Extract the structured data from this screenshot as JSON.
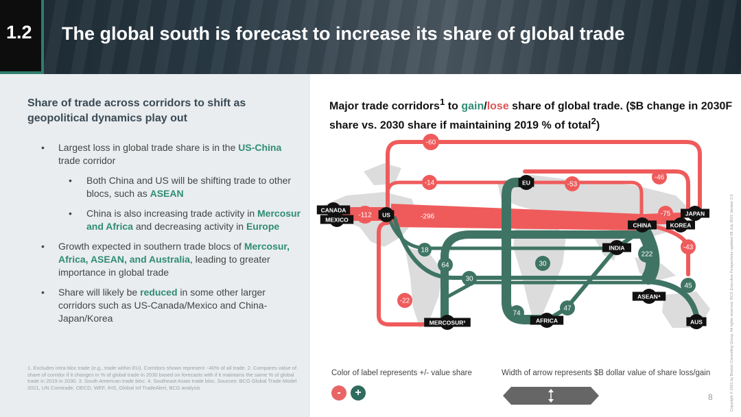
{
  "header": {
    "section_number": "1.2",
    "title": "The global south is forecast to increase its share of global trade"
  },
  "left": {
    "heading": "Share of trade across corridors to shift as geopolitical dynamics play out",
    "bullets": [
      {
        "level": 1,
        "parts": [
          {
            "t": "Largest loss in global trade share is in the "
          },
          {
            "t": "US-China",
            "hl": true
          },
          {
            "t": " trade corridor"
          }
        ]
      },
      {
        "level": 2,
        "parts": [
          {
            "t": "Both China and US will be shifting trade to other blocs, such as "
          },
          {
            "t": "ASEAN",
            "hl": true
          }
        ]
      },
      {
        "level": 2,
        "parts": [
          {
            "t": "China is also increasing trade activity in "
          },
          {
            "t": "Mercosur and Africa",
            "hl": true
          },
          {
            "t": " and decreasing activity in "
          },
          {
            "t": "Europe",
            "hl": true
          }
        ]
      },
      {
        "level": 1,
        "parts": [
          {
            "t": "Growth expected in southern trade blocs of "
          },
          {
            "t": "Mercosur, Africa, ASEAN, and Australia",
            "hl": true
          },
          {
            "t": ", leading to greater importance in global trade"
          }
        ]
      },
      {
        "level": 1,
        "parts": [
          {
            "t": "Share will likely be "
          },
          {
            "t": "reduced",
            "hl": true
          },
          {
            "t": " in some other larger corridors such as US-Canada/Mexico and China-Japan/Korea"
          }
        ]
      }
    ],
    "footnotes": "1. Excludes intra-bloc trade (e.g., trade within EU). Corridors shown represent ~40% of all trade. 2. Compares value of share of corridor if it changes in % of global trade in 2030 based on forecasts with if it maintains the same % of global trade in 2019 in 2030. 3. South American trade bloc. 4. Southeast Asian trade bloc. Sources: BCG Global Trade Model 2021, UN Comtrade, OECD, WEF, IHS, Global Inf TradeAlert, BCG analysis"
  },
  "chart": {
    "title_parts": {
      "p1": "Major trade corridors",
      "sup1": "1",
      "p2": " to ",
      "gain": "gain",
      "slash": "/",
      "lose": "lose",
      "p3": " share of global trade. ($B change in 2030F share vs. 2030 share if maintaining 2019 % of total",
      "sup2": "2",
      "p4": ")"
    },
    "colors": {
      "lose": "#ef5b5b",
      "gain": "#3f7464",
      "label_node": "#111111"
    },
    "nodes": {
      "canada": "CANADA",
      "mexico": "MEXICO",
      "us": "US",
      "eu": "EU",
      "china": "CHINA",
      "japan": "JAPAN",
      "korea": "KOREA",
      "india": "INDIA",
      "asean": "ASEAN⁴",
      "mercosur": "MERCOSUR³",
      "africa": "AFRICA",
      "aus": "AUS"
    },
    "values": {
      "us_eu_japan": "-60",
      "us_eu": "-14",
      "eu_china": "-53",
      "eu_japan": "-46",
      "us_canada_mexico": "-112",
      "us_china": "-296",
      "china_japan_korea": "-75",
      "china_aus": "-43",
      "us_mercosur": "-22",
      "us_india": "18",
      "china_mercosur": "64",
      "us_asean": "30",
      "mercosur_asean": "30",
      "china_africa": "47",
      "eu_africa": "74",
      "china_asean": "222",
      "asean_aus": "45"
    }
  },
  "legend": {
    "color_label": "Color of label represents +/- value share",
    "width_label": "Width of arrow represents $B dollar value of share loss/gain",
    "minus": "-",
    "plus": "+"
  },
  "page_number": "8",
  "copyright": "Copyright © 2021 by Boston Consulting Group. All rights reserved. BCG Executive Perspectives updated 08 July 2021 Version 2.0"
}
